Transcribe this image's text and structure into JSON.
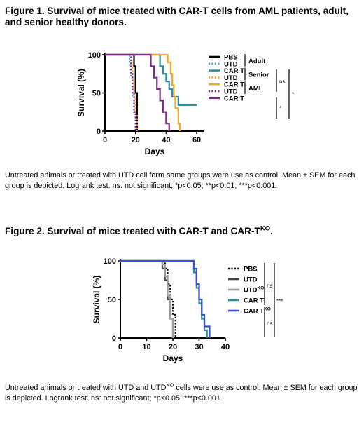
{
  "figure1": {
    "title": "Figure 1. Survival of mice treated with CAR-T cells from AML patients, adult, and senior healthy donors.",
    "caption": "Untreated animals or treated with UTD cell form same groups were use as control. Mean ± SEM for each group is depicted. Logrank test. ns: not significant; *p<0.05; **p<0.01; ***p<0.001.",
    "group_labels": [
      "Adult",
      "Senior",
      "AML"
    ],
    "significance": [
      "ns",
      "*",
      "*"
    ]
  },
  "figure2": {
    "title_main": "Figure 2. Survival of mice treated with CAR-T and CAR-T",
    "title_sup": "KO",
    "title_end": ".",
    "caption": "Untreated animals or treated with UTD and UTDKO cells were use as control. Mean ± SEM for each group is depicted. Logrank test. ns: not significant; *p<0.05; ***p<0.001",
    "caption_part1": "Untreated animals or treated with UTD and UTD",
    "caption_sup": "KO",
    "caption_part2": " cells were use as control. Mean ± SEM for each group is depicted. Logrank test. ns: not significant; *p<0.05; ***p<0.001",
    "significance": [
      "ns",
      "***",
      "ns"
    ]
  },
  "chart_data": [
    {
      "type": "line",
      "step": true,
      "xlabel": "Days",
      "ylabel": "Survival (%)",
      "xlim": [
        0,
        65
      ],
      "ylim": [
        0,
        100
      ],
      "xticks": [
        0,
        20,
        40,
        60
      ],
      "yticks": [
        0,
        50,
        100
      ],
      "legend_position": "right",
      "series": [
        {
          "name": "PBS",
          "color": "#000000",
          "dash": "solid",
          "x": [
            0,
            19,
            20,
            21
          ],
          "y": [
            100,
            85,
            50,
            0
          ]
        },
        {
          "name": "UTD",
          "color": "#4aa3c8",
          "dash": "dotted",
          "x": [
            0,
            16,
            17,
            18,
            19,
            20
          ],
          "y": [
            100,
            85,
            70,
            45,
            25,
            0
          ]
        },
        {
          "name": "CAR T",
          "color": "#2a8fa3",
          "dash": "solid",
          "x": [
            0,
            30,
            36,
            38,
            40,
            42,
            44,
            46,
            48,
            52,
            60
          ],
          "y": [
            100,
            100,
            85,
            75,
            65,
            55,
            45,
            45,
            34,
            34,
            34
          ]
        },
        {
          "name": "UTD",
          "color": "#f5a623",
          "dash": "dotted",
          "x": [
            0,
            17,
            18,
            19,
            20,
            21
          ],
          "y": [
            100,
            90,
            70,
            45,
            20,
            0
          ]
        },
        {
          "name": "CAR T",
          "color": "#f5a623",
          "dash": "solid",
          "x": [
            0,
            38,
            41,
            43,
            44,
            45,
            46,
            48,
            49
          ],
          "y": [
            100,
            100,
            90,
            75,
            60,
            45,
            30,
            10,
            0
          ]
        },
        {
          "name": "UTD",
          "color": "#7b2a8a",
          "dash": "dotted",
          "x": [
            0,
            17,
            18,
            19,
            20
          ],
          "y": [
            100,
            75,
            50,
            25,
            0
          ]
        },
        {
          "name": "CAR T",
          "color": "#7b2a8a",
          "dash": "solid",
          "x": [
            0,
            28,
            30,
            32,
            34,
            36,
            38,
            40,
            42
          ],
          "y": [
            100,
            100,
            85,
            70,
            55,
            40,
            25,
            10,
            0
          ]
        }
      ]
    },
    {
      "type": "line",
      "step": true,
      "xlabel": "Days",
      "ylabel": "Survival (%)",
      "xlim": [
        0,
        40
      ],
      "ylim": [
        0,
        100
      ],
      "xticks": [
        0,
        10,
        20,
        30,
        40
      ],
      "yticks": [
        0,
        50,
        100
      ],
      "legend_position": "right",
      "series": [
        {
          "name": "PBS",
          "color": "#000000",
          "dash": "dotted",
          "x": [
            0,
            17,
            18,
            19,
            20,
            21
          ],
          "y": [
            100,
            90,
            70,
            50,
            30,
            0
          ]
        },
        {
          "name": "UTD",
          "color": "#444444",
          "dash": "solid",
          "x": [
            0,
            16,
            17,
            18,
            19,
            20
          ],
          "y": [
            100,
            90,
            75,
            50,
            25,
            0
          ]
        },
        {
          "name": "UTDKO",
          "color": "#9e9e9e",
          "dash": "solid",
          "x": [
            0,
            16,
            17,
            18,
            19,
            20
          ],
          "y": [
            100,
            95,
            80,
            55,
            25,
            0
          ]
        },
        {
          "name": "CAR T",
          "color": "#2a8fa3",
          "dash": "solid",
          "x": [
            0,
            27,
            28,
            29,
            30,
            31,
            32,
            33
          ],
          "y": [
            100,
            100,
            85,
            65,
            45,
            25,
            10,
            0
          ]
        },
        {
          "name": "CAR TKO",
          "color": "#3a4fd8",
          "dash": "solid",
          "x": [
            0,
            27,
            28,
            29,
            30,
            31,
            32,
            34
          ],
          "y": [
            100,
            100,
            90,
            70,
            50,
            30,
            15,
            0
          ]
        }
      ]
    }
  ]
}
